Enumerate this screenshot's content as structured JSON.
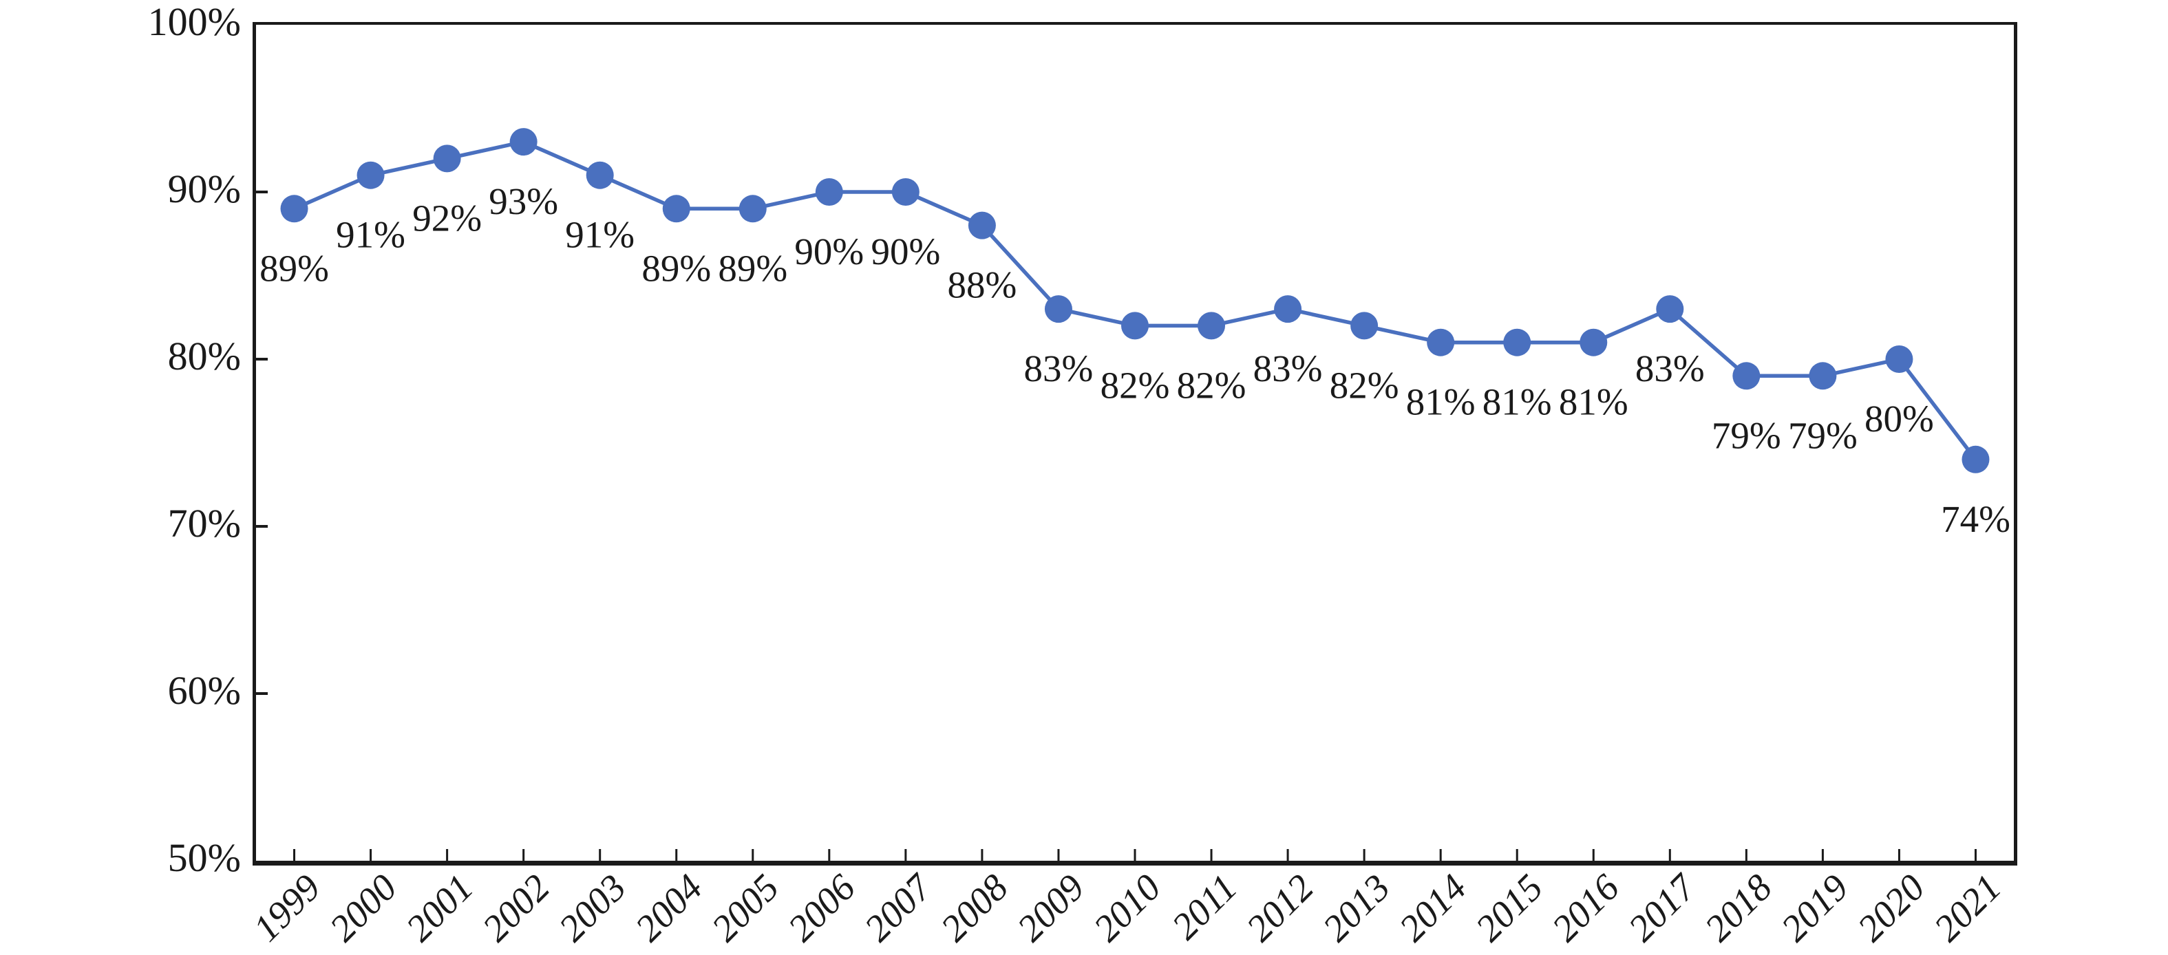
{
  "chart_data": {
    "type": "line",
    "title": "",
    "xlabel": "",
    "ylabel": "",
    "categories": [
      "1999",
      "2000",
      "2001",
      "2002",
      "2003",
      "2004",
      "2005",
      "2006",
      "2007",
      "2008",
      "2009",
      "2010",
      "2011",
      "2012",
      "2013",
      "2014",
      "2015",
      "2016",
      "2017",
      "2018",
      "2019",
      "2020",
      "2021"
    ],
    "series": [
      {
        "name": "percentage",
        "values": [
          89,
          91,
          92,
          93,
          91,
          89,
          89,
          90,
          90,
          88,
          83,
          82,
          82,
          83,
          82,
          81,
          81,
          81,
          83,
          79,
          79,
          80,
          74
        ]
      }
    ],
    "point_labels": [
      "89%",
      "91%",
      "92%",
      "93%",
      "91%",
      "89%",
      "89%",
      "90%",
      "90%",
      "88%",
      "83%",
      "82%",
      "82%",
      "83%",
      "82%",
      "81%",
      "81%",
      "81%",
      "83%",
      "79%",
      "79%",
      "80%",
      "74%"
    ],
    "y_tick_labels": [
      "100%",
      "90%",
      "80%",
      "70%",
      "60%",
      "50%"
    ],
    "y_tick_values": [
      100,
      90,
      80,
      70,
      60,
      50
    ],
    "ylim": [
      50,
      100
    ],
    "grid": false,
    "legend_position": "none",
    "data_label_position": "below",
    "marker_style": "circle",
    "colors": {
      "line": "#4a70bf",
      "marker": "#4a70bf",
      "axis": "#1a1a1a",
      "text": "#1a1a1a",
      "background": "#ffffff"
    }
  }
}
